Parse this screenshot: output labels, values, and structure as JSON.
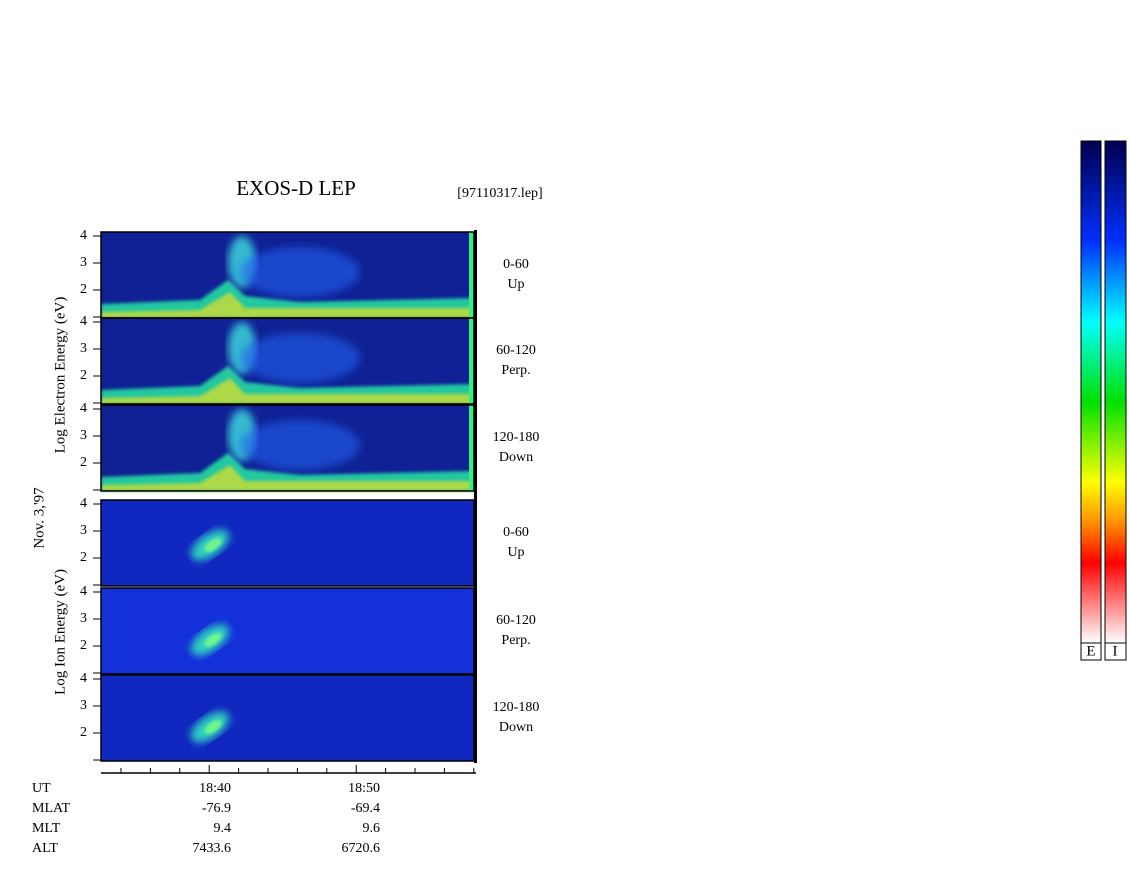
{
  "header": {
    "title": "EXOS-D LEP",
    "file": "[97110317.lep]",
    "date": "Nov. 3,'97"
  },
  "electron": {
    "axis_label": "Log Electron Energy (eV)",
    "panels": [
      {
        "range": "0-60",
        "direction": "Up",
        "yticks": [
          2,
          3,
          4
        ]
      },
      {
        "range": "60-120",
        "direction": "Perp.",
        "yticks": [
          2,
          3,
          4
        ]
      },
      {
        "range": "120-180",
        "direction": "Down",
        "yticks": [
          2,
          3,
          4
        ]
      }
    ]
  },
  "ion": {
    "axis_label": "Log Ion Energy (eV)",
    "panels": [
      {
        "range": "0-60",
        "direction": "Up",
        "yticks": [
          2,
          3,
          4
        ]
      },
      {
        "range": "60-120",
        "direction": "Perp.",
        "yticks": [
          2,
          3,
          4
        ]
      },
      {
        "range": "120-180",
        "direction": "Down",
        "yticks": [
          2,
          3,
          4
        ]
      }
    ]
  },
  "time_axis": {
    "rows": [
      {
        "label": "UT",
        "values": [
          "18:40",
          "18:50"
        ]
      },
      {
        "label": "MLAT",
        "values": [
          -76.9,
          -69.4
        ]
      },
      {
        "label": "MLT",
        "values": [
          9.4,
          9.6
        ]
      },
      {
        "label": "ALT",
        "values": [
          7433.6,
          6720.6
        ]
      }
    ]
  },
  "colorbars": [
    "E",
    "I"
  ]
}
